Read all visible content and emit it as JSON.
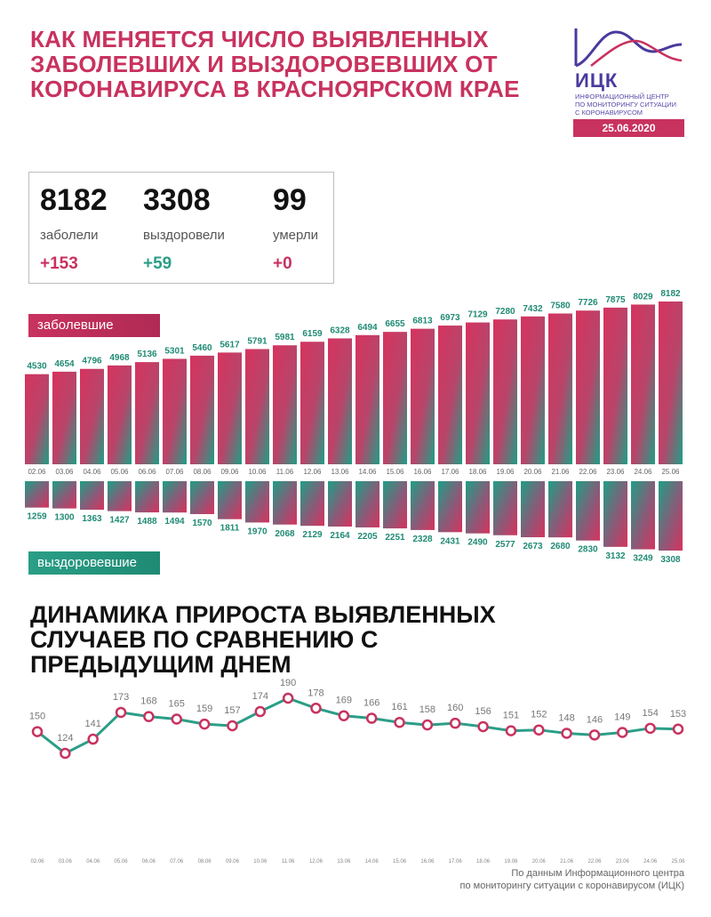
{
  "title": "Как меняется число выявленных заболевших и выздоровевших от коронавируса в Красноярском крае",
  "logo": {
    "abbr": "ИЦК",
    "line1": "Информационный центр",
    "line2": "по мониторингу ситуации",
    "line3": "с коронавирусом",
    "date": "25.06.2020"
  },
  "stats": [
    {
      "value": "8182",
      "label": "заболели",
      "delta": "+153",
      "color": "#c8325f"
    },
    {
      "value": "3308",
      "label": "выздоровели",
      "delta": "+59",
      "color": "#2b9e87"
    },
    {
      "value": "99",
      "label": "умерли",
      "delta": "+0",
      "color": "#c8325f"
    }
  ],
  "badge_cases": "заболевшие",
  "badge_recovered": "выздоровевшие",
  "section2_title": "Динамика прироста выявленных случаев по сравнению с предыдущим днем",
  "footer": {
    "line1": "По данным Информационного центра",
    "line2": "по мониторингу ситуации с коронавирусом (ИЦК)"
  },
  "colors": {
    "accent": "#c8325f",
    "teal": "#2b9e87"
  },
  "chart_data": [
    {
      "type": "bar",
      "categories": [
        "02.06",
        "03.06",
        "04.06",
        "05.06",
        "06.06",
        "07.06",
        "08.06",
        "09.06",
        "10.06",
        "11.06",
        "12.06",
        "13.06",
        "14.06",
        "15.06",
        "16.06",
        "17.06",
        "18.06",
        "19.06",
        "20.06",
        "21.06",
        "22.06",
        "23.06",
        "24.06",
        "25.06"
      ],
      "series": [
        {
          "name": "заболевшие",
          "values": [
            4530,
            4654,
            4796,
            4968,
            5136,
            5301,
            5460,
            5617,
            5791,
            5981,
            6159,
            6328,
            6494,
            6655,
            6813,
            6973,
            7129,
            7280,
            7432,
            7580,
            7726,
            7875,
            8029,
            8182
          ]
        },
        {
          "name": "выздоровевшие",
          "values": [
            1259,
            1300,
            1363,
            1427,
            1488,
            1494,
            1570,
            1811,
            1970,
            2068,
            2129,
            2164,
            2205,
            2251,
            2328,
            2431,
            2490,
            2577,
            2673,
            2680,
            2830,
            3132,
            3249,
            3308
          ]
        }
      ]
    },
    {
      "type": "line",
      "title": "Динамика прироста выявленных случаев по сравнению с предыдущим днем",
      "categories": [
        "02.06",
        "03.06",
        "04.06",
        "05.06",
        "06.06",
        "07.06",
        "08.06",
        "09.06",
        "10.06",
        "11.06",
        "12.06",
        "13.06",
        "14.06",
        "15.06",
        "16.06",
        "17.06",
        "18.06",
        "19.06",
        "20.06",
        "21.06",
        "22.06",
        "23.06",
        "24.06",
        "25.06"
      ],
      "values": [
        150,
        124,
        141,
        173,
        168,
        165,
        159,
        157,
        174,
        190,
        178,
        169,
        166,
        161,
        158,
        160,
        156,
        151,
        152,
        148,
        146,
        149,
        154,
        153
      ]
    }
  ]
}
